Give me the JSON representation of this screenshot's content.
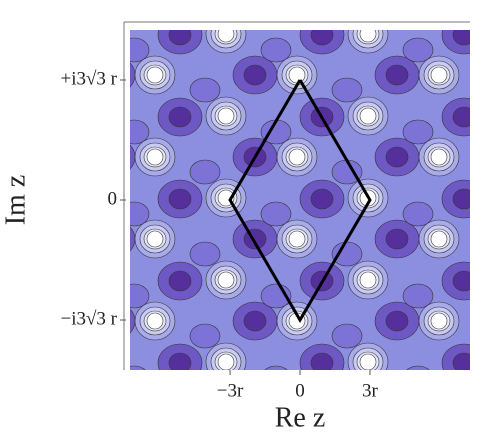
{
  "chart_data": {
    "type": "contour",
    "xlabel": "Re z",
    "ylabel": "Im z",
    "xlim": [
      -7.29,
      7.29
    ],
    "ylim": [
      -7.36,
      7.36
    ],
    "xticks": [
      {
        "value": -3,
        "label": "−3r"
      },
      0,
      {
        "value": 3,
        "label": "3r"
      }
    ],
    "yticks": [
      {
        "value": -5.196,
        "label": "−i3√3 r"
      },
      0,
      {
        "value": 5.196,
        "label": "+i3√3 r"
      }
    ],
    "cell": {
      "color": "#000000",
      "x": [
        0,
        3,
        0,
        -3,
        0
      ],
      "y": [
        5.196,
        0,
        -5.196,
        0,
        5.196
      ]
    }
  }
}
